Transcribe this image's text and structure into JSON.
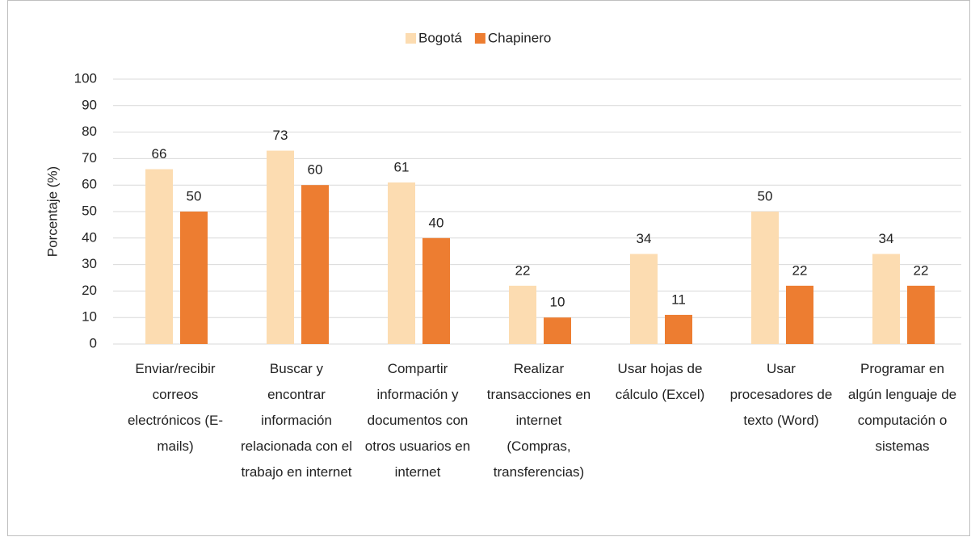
{
  "chart_data": {
    "type": "bar",
    "y_label": "Porcentaje (%)",
    "categories": [
      "Enviar/recibir correos electrónicos (E-mails)",
      "Buscar y encontrar información relacionada con el trabajo en internet",
      "Compartir información y documentos con otros usuarios en internet",
      "Realizar transacciones en internet (Compras, transferencias)",
      "Usar hojas de cálculo (Excel)",
      "Usar procesadores de texto (Word)",
      "Programar en algún lenguaje de computación o sistemas"
    ],
    "series": [
      {
        "name": "Bogotá",
        "color": "#fcdcb1",
        "values": [
          66,
          73,
          61,
          22,
          34,
          50,
          34
        ]
      },
      {
        "name": "Chapinero",
        "color": "#ed7d31",
        "values": [
          50,
          60,
          40,
          10,
          11,
          22,
          22
        ]
      }
    ],
    "ylim": [
      0,
      100
    ],
    "yticks": [
      0,
      10,
      20,
      30,
      40,
      50,
      60,
      70,
      80,
      90,
      100
    ],
    "grid": true,
    "legend": "top"
  }
}
